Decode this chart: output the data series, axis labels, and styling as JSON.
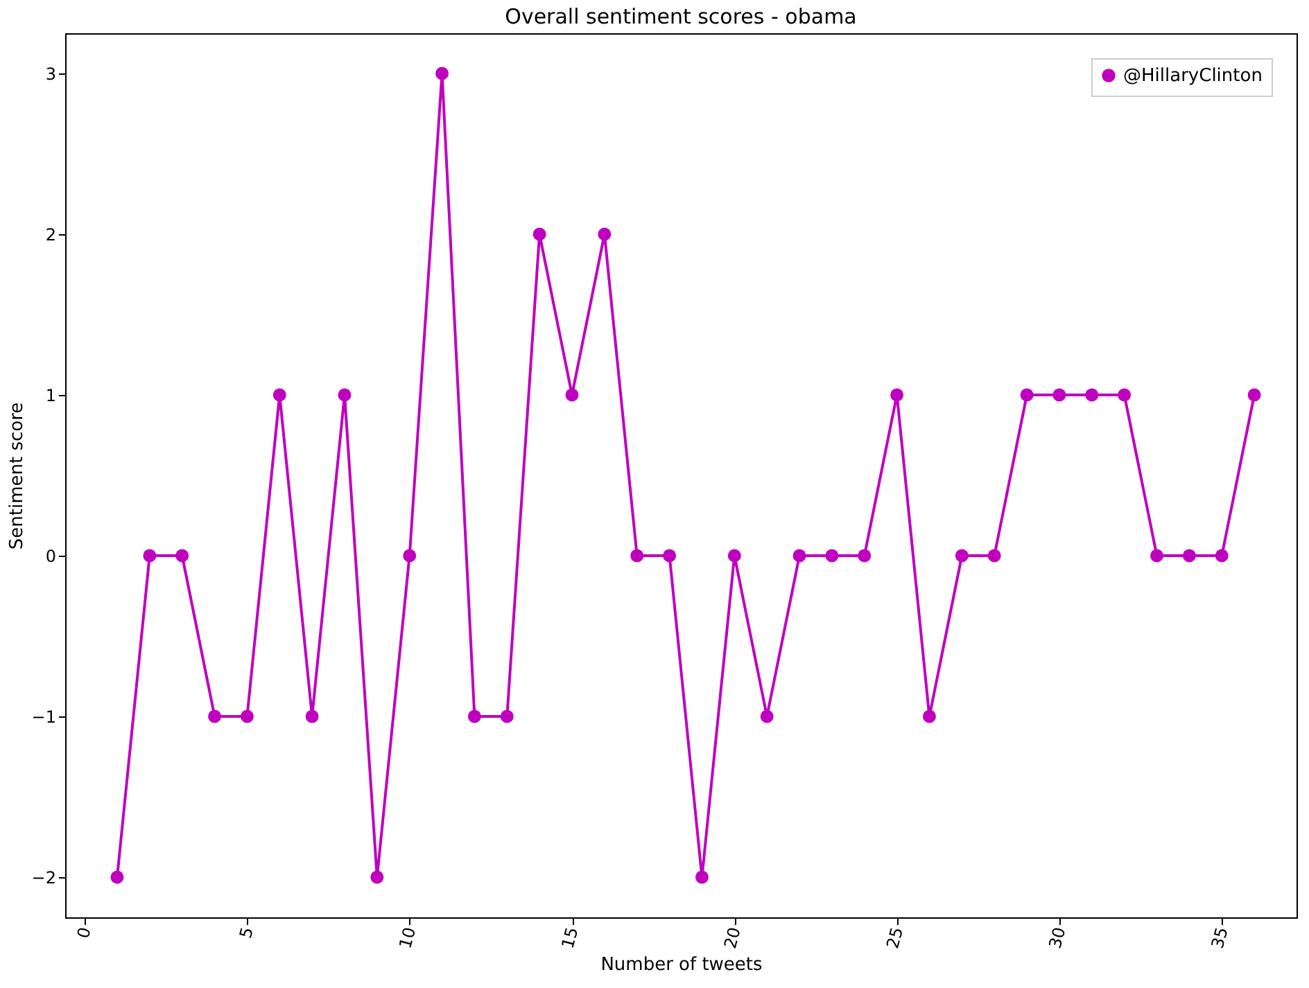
{
  "chart_data": {
    "type": "line",
    "title": "Overall sentiment scores - obama",
    "xlabel": "Number of tweets",
    "ylabel": "Sentiment score",
    "x": [
      1,
      2,
      3,
      4,
      5,
      6,
      7,
      8,
      9,
      10,
      11,
      12,
      13,
      14,
      15,
      16,
      17,
      18,
      19,
      20,
      21,
      22,
      23,
      24,
      25,
      26,
      27,
      28,
      29,
      30,
      31,
      32,
      33,
      34,
      35,
      36
    ],
    "series": [
      {
        "name": "@HillaryClinton",
        "color": "#bf00bf",
        "values": [
          -2,
          0,
          0,
          -1,
          -1,
          1,
          -1,
          1,
          -2,
          0,
          3,
          -1,
          -1,
          2,
          1,
          2,
          0,
          0,
          -2,
          0,
          -1,
          0,
          0,
          0,
          1,
          -1,
          0,
          0,
          1,
          1,
          1,
          1,
          0,
          0,
          0,
          1
        ]
      }
    ],
    "xlim": [
      -0.6,
      37.3
    ],
    "xticks": [
      0,
      5,
      10,
      15,
      20,
      25,
      30,
      35
    ],
    "ylim": [
      -2.25,
      3.25
    ],
    "yticks": [
      -2,
      -1,
      0,
      1,
      2,
      3
    ],
    "grid": false,
    "legend": "top right",
    "marker": "circle",
    "line_style": "solid"
  }
}
